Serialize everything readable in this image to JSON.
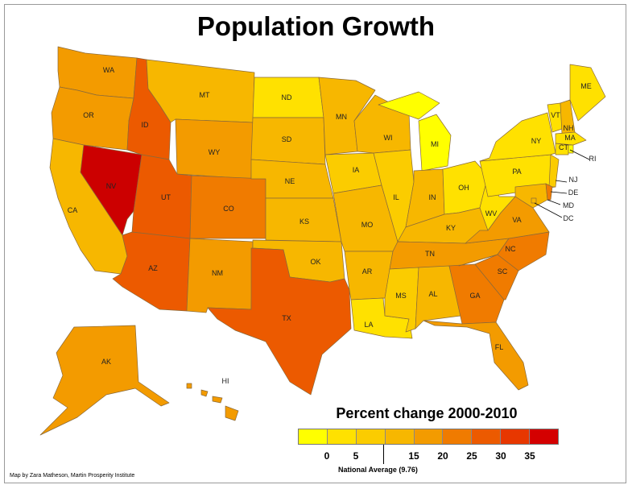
{
  "title": "Population Growth",
  "legend": {
    "title": "Percent change 2000-2010",
    "colors": [
      "#ffff00",
      "#ffe100",
      "#fbcc00",
      "#f7b700",
      "#f39b00",
      "#f07b00",
      "#ec5a00",
      "#e73700",
      "#d40000"
    ],
    "ticks": [
      "0",
      "5",
      "15",
      "20",
      "25",
      "30",
      "35"
    ],
    "national_average_label": "National Average (9.76)"
  },
  "credit": "Map by Zara Matheson, Martin Prosperity Institute",
  "states": {
    "WA": {
      "label": "WA",
      "color": "#f39b00"
    },
    "OR": {
      "label": "OR",
      "color": "#f39b00"
    },
    "CA": {
      "label": "CA",
      "color": "#f7b700"
    },
    "NV": {
      "label": "NV",
      "color": "#cc0000"
    },
    "ID": {
      "label": "ID",
      "color": "#ec5a00"
    },
    "MT": {
      "label": "MT",
      "color": "#f7b700"
    },
    "WY": {
      "label": "WY",
      "color": "#f39b00"
    },
    "UT": {
      "label": "UT",
      "color": "#ec5a00"
    },
    "AZ": {
      "label": "AZ",
      "color": "#ec5a00"
    },
    "CO": {
      "label": "CO",
      "color": "#f07b00"
    },
    "NM": {
      "label": "NM",
      "color": "#f39b00"
    },
    "ND": {
      "label": "ND",
      "color": "#ffe100"
    },
    "SD": {
      "label": "SD",
      "color": "#f7b700"
    },
    "NE": {
      "label": "NE",
      "color": "#f7b700"
    },
    "KS": {
      "label": "KS",
      "color": "#f7b700"
    },
    "OK": {
      "label": "OK",
      "color": "#f7b700"
    },
    "TX": {
      "label": "TX",
      "color": "#ec5a00"
    },
    "MN": {
      "label": "MN",
      "color": "#f7b700"
    },
    "IA": {
      "label": "IA",
      "color": "#fbcc00"
    },
    "MO": {
      "label": "MO",
      "color": "#f7b700"
    },
    "AR": {
      "label": "AR",
      "color": "#f7b700"
    },
    "LA": {
      "label": "LA",
      "color": "#ffe100"
    },
    "WI": {
      "label": "WI",
      "color": "#f7b700"
    },
    "IL": {
      "label": "IL",
      "color": "#fbcc00"
    },
    "MI": {
      "label": "MI",
      "color": "#ffff00"
    },
    "IN": {
      "label": "IN",
      "color": "#f7b700"
    },
    "OH": {
      "label": "OH",
      "color": "#ffe100"
    },
    "KY": {
      "label": "KY",
      "color": "#f7b700"
    },
    "TN": {
      "label": "TN",
      "color": "#f39b00"
    },
    "MS": {
      "label": "MS",
      "color": "#fbcc00"
    },
    "AL": {
      "label": "AL",
      "color": "#f7b700"
    },
    "GA": {
      "label": "GA",
      "color": "#f07b00"
    },
    "FL": {
      "label": "FL",
      "color": "#f39b00"
    },
    "SC": {
      "label": "SC",
      "color": "#f07b00"
    },
    "NC": {
      "label": "NC",
      "color": "#f07b00"
    },
    "VA": {
      "label": "VA",
      "color": "#f39b00"
    },
    "WV": {
      "label": "WV",
      "color": "#ffe100"
    },
    "PA": {
      "label": "PA",
      "color": "#ffe100"
    },
    "NY": {
      "label": "NY",
      "color": "#ffe100"
    },
    "NJ": {
      "label": "NJ",
      "color": "#fbcc00"
    },
    "VT": {
      "label": "VT",
      "color": "#ffe100"
    },
    "NH": {
      "label": "NH",
      "color": "#f7b700"
    },
    "ME": {
      "label": "ME",
      "color": "#ffe100"
    },
    "MA": {
      "label": "MA",
      "color": "#ffe100"
    },
    "CT": {
      "label": "CT",
      "color": "#ffe100"
    },
    "RI": {
      "label": "RI",
      "color": "#ffff00"
    },
    "DE": {
      "label": "DE",
      "color": "#f07b00"
    },
    "MD": {
      "label": "MD",
      "color": "#f7b700"
    },
    "DC": {
      "label": "DC",
      "color": "#f7b700"
    },
    "AK": {
      "label": "AK",
      "color": "#f39b00"
    },
    "HI": {
      "label": "HI",
      "color": "#f39b00"
    }
  }
}
